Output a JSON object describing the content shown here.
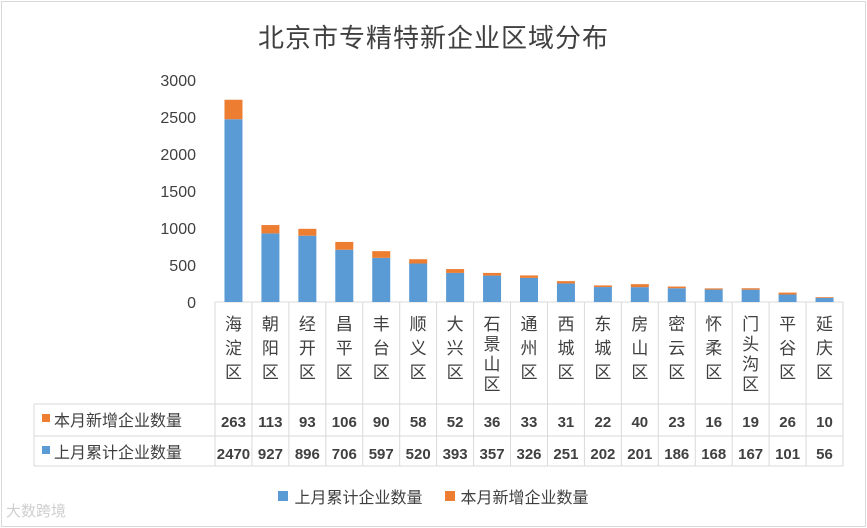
{
  "chart_data": {
    "type": "bar",
    "stacked": true,
    "title": "北京市专精特新企业区域分布",
    "categories": [
      "海淀区",
      "朝阳区",
      "经开区",
      "昌平区",
      "丰台区",
      "顺义区",
      "大兴区",
      "石景山区",
      "通州区",
      "西城区",
      "东城区",
      "房山区",
      "密云区",
      "怀柔区",
      "门头沟区",
      "平谷区",
      "延庆区"
    ],
    "series": [
      {
        "name": "上月累计企业数量",
        "color": "#5b9bd5",
        "values": [
          2470,
          927,
          896,
          706,
          597,
          520,
          393,
          357,
          326,
          251,
          202,
          201,
          186,
          168,
          167,
          101,
          56
        ]
      },
      {
        "name": "本月新增企业数量",
        "color": "#ed7d31",
        "values": [
          263,
          113,
          93,
          106,
          90,
          58,
          52,
          36,
          33,
          31,
          22,
          40,
          23,
          16,
          19,
          26,
          10
        ]
      }
    ],
    "ylim": [
      0,
      3000
    ],
    "yticks": [
      0,
      500,
      1000,
      1500,
      2000,
      2500,
      3000
    ],
    "ytick_labels": [
      "0",
      "500",
      "1000",
      "1500",
      "2000",
      "2500",
      "3000"
    ],
    "grid": false,
    "legend": "bottom",
    "data_table": true
  },
  "watermark": "大数跨境"
}
